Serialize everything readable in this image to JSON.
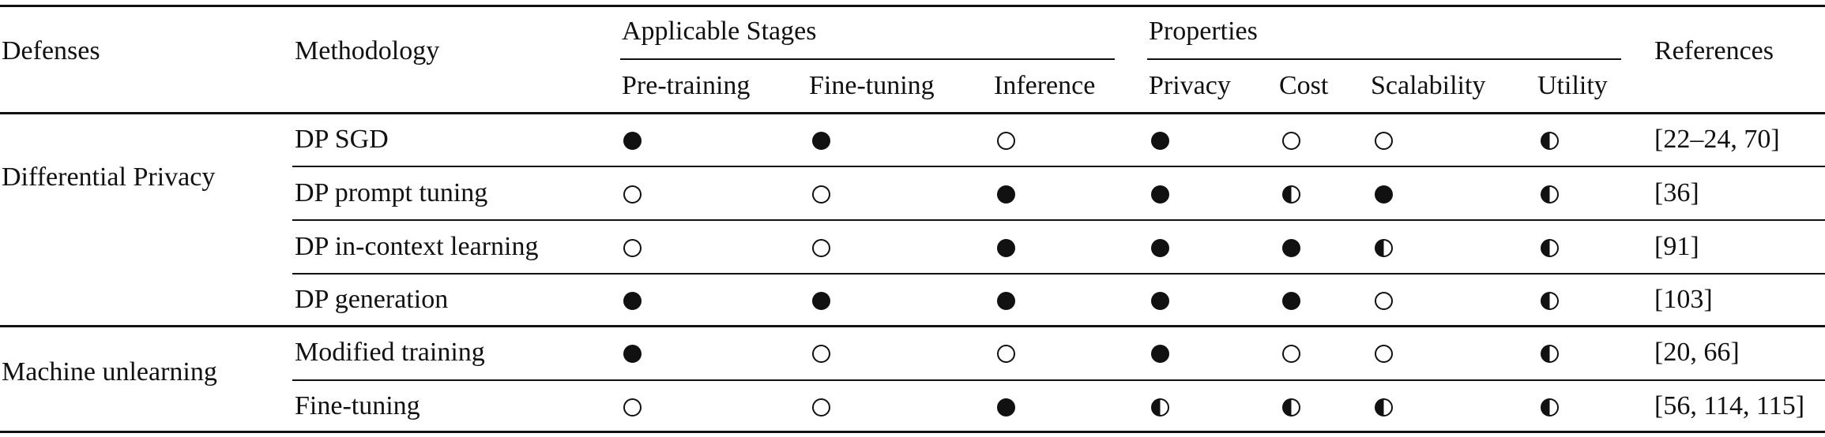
{
  "table": {
    "headers": {
      "defenses": "Defenses",
      "methodology": "Methodology",
      "applicable_stages": "Applicable Stages",
      "properties": "Properties",
      "references": "References",
      "pre_training": "Pre-training",
      "fine_tuning": "Fine-tuning",
      "inference": "Inference",
      "privacy": "Privacy",
      "cost": "Cost",
      "scalability": "Scalability",
      "utility": "Utility"
    },
    "legend_symbols": {
      "full": "●",
      "half": "◑",
      "empty": "○"
    },
    "groups": [
      {
        "name": "Differential Privacy",
        "rows": [
          {
            "methodology": "DP SGD",
            "pre_training": "full",
            "fine_tuning": "full",
            "inference": "empty",
            "privacy": "full",
            "cost": "empty",
            "scalability": "empty",
            "utility": "half",
            "references": "[22–24, 70]"
          },
          {
            "methodology": "DP prompt tuning",
            "pre_training": "empty",
            "fine_tuning": "empty",
            "inference": "full",
            "privacy": "full",
            "cost": "half",
            "scalability": "full",
            "utility": "half",
            "references": "[36]"
          },
          {
            "methodology": "DP in-context learning",
            "pre_training": "empty",
            "fine_tuning": "empty",
            "inference": "full",
            "privacy": "full",
            "cost": "full",
            "scalability": "half",
            "utility": "half",
            "references": "[91]"
          },
          {
            "methodology": "DP generation",
            "pre_training": "full",
            "fine_tuning": "full",
            "inference": "full",
            "privacy": "full",
            "cost": "full",
            "scalability": "empty",
            "utility": "half",
            "references": "[103]"
          }
        ]
      },
      {
        "name": "Machine unlearning",
        "rows": [
          {
            "methodology": "Modified training",
            "pre_training": "full",
            "fine_tuning": "empty",
            "inference": "empty",
            "privacy": "full",
            "cost": "empty",
            "scalability": "empty",
            "utility": "half",
            "references": "[20, 66]"
          },
          {
            "methodology": "Fine-tuning",
            "pre_training": "empty",
            "fine_tuning": "empty",
            "inference": "full",
            "privacy": "half",
            "cost": "half",
            "scalability": "half",
            "utility": "half",
            "references": "[56, 114, 115]"
          }
        ]
      }
    ]
  }
}
